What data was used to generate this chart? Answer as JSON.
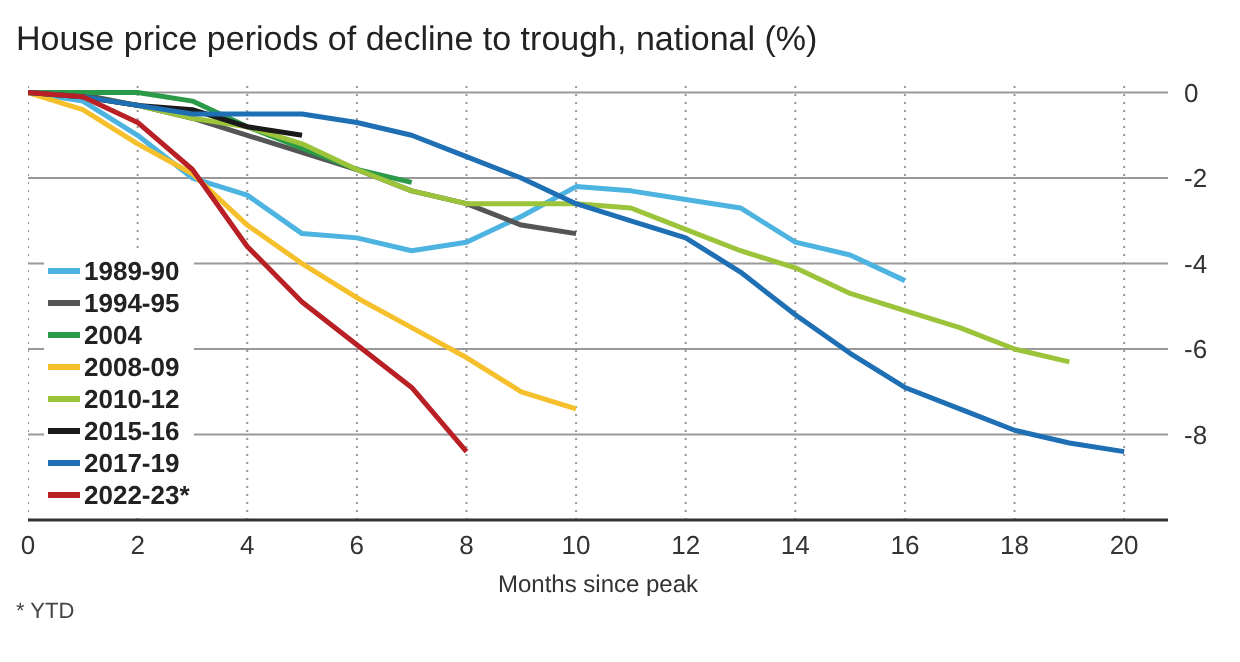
{
  "chart_data": {
    "type": "line",
    "title": "House price periods of decline to trough, national (%)",
    "xlabel": "Months since peak",
    "annotations": [
      "* YTD"
    ],
    "xlim": [
      0,
      20.8
    ],
    "xticks": [
      0,
      2,
      4,
      6,
      8,
      10,
      12,
      14,
      16,
      18,
      20
    ],
    "ylim": [
      -10,
      0.2
    ],
    "yticks": [
      0,
      -2,
      -4,
      -6,
      -8
    ],
    "grid": true,
    "legend": "left",
    "marker": "none",
    "line_style": "solid",
    "series": [
      {
        "name": "1989-90",
        "color": "#4db3e0",
        "x": [
          0,
          1,
          2,
          3,
          4,
          5,
          6,
          7,
          8,
          9,
          10,
          11,
          12,
          13,
          14,
          15,
          16
        ],
        "values": [
          0,
          -0.2,
          -1.0,
          -2.0,
          -2.4,
          -3.3,
          -3.4,
          -3.7,
          -3.5,
          -2.9,
          -2.2,
          -2.3,
          -2.5,
          -2.7,
          -3.5,
          -3.8,
          -4.4
        ]
      },
      {
        "name": "1994-95",
        "color": "#555555",
        "x": [
          0,
          1,
          2,
          3,
          4,
          5,
          6,
          7,
          8,
          9,
          10
        ],
        "values": [
          0,
          -0.05,
          -0.3,
          -0.6,
          -1.0,
          -1.4,
          -1.8,
          -2.3,
          -2.6,
          -3.1,
          -3.3
        ]
      },
      {
        "name": "2004",
        "color": "#2a9a48",
        "x": [
          0,
          1,
          2,
          3,
          4,
          5,
          6,
          7
        ],
        "values": [
          0,
          0,
          0,
          -0.2,
          -0.8,
          -1.3,
          -1.8,
          -2.1
        ]
      },
      {
        "name": "2008-09",
        "color": "#f5c02c",
        "x": [
          0,
          1,
          2,
          3,
          4,
          5,
          6,
          7,
          8,
          9,
          10
        ],
        "values": [
          0,
          -0.4,
          -1.2,
          -1.9,
          -3.1,
          -4.0,
          -4.8,
          -5.5,
          -6.2,
          -7.0,
          -7.4
        ]
      },
      {
        "name": "2010-12",
        "color": "#9cc43a",
        "x": [
          0,
          1,
          2,
          3,
          4,
          5,
          6,
          7,
          8,
          9,
          10,
          11,
          12,
          13,
          14,
          15,
          16,
          17,
          18,
          19
        ],
        "values": [
          0,
          -0.1,
          -0.3,
          -0.6,
          -0.8,
          -1.2,
          -1.8,
          -2.3,
          -2.6,
          -2.6,
          -2.6,
          -2.7,
          -3.2,
          -3.7,
          -4.1,
          -4.7,
          -5.1,
          -5.5,
          -6.0,
          -6.3
        ]
      },
      {
        "name": "2015-16",
        "color": "#1a1a1a",
        "x": [
          0,
          1,
          2,
          3,
          4,
          5
        ],
        "values": [
          0,
          -0.1,
          -0.3,
          -0.4,
          -0.8,
          -1.0
        ]
      },
      {
        "name": "2017-19",
        "color": "#1f6fb5",
        "x": [
          0,
          1,
          2,
          3,
          4,
          5,
          6,
          7,
          8,
          9,
          10,
          11,
          12,
          13,
          14,
          15,
          16,
          17,
          18,
          19,
          20
        ],
        "values": [
          0,
          -0.1,
          -0.3,
          -0.5,
          -0.5,
          -0.5,
          -0.7,
          -1.0,
          -1.5,
          -2.0,
          -2.6,
          -3.0,
          -3.4,
          -4.2,
          -5.2,
          -6.1,
          -6.9,
          -7.4,
          -7.9,
          -8.2,
          -8.4
        ]
      },
      {
        "name": "2022-23*",
        "color": "#b82025",
        "x": [
          0,
          1,
          2,
          3,
          4,
          5,
          6,
          7,
          8
        ],
        "values": [
          0,
          -0.1,
          -0.7,
          -1.8,
          -3.6,
          -4.9,
          -5.9,
          -6.9,
          -8.4
        ]
      }
    ]
  }
}
